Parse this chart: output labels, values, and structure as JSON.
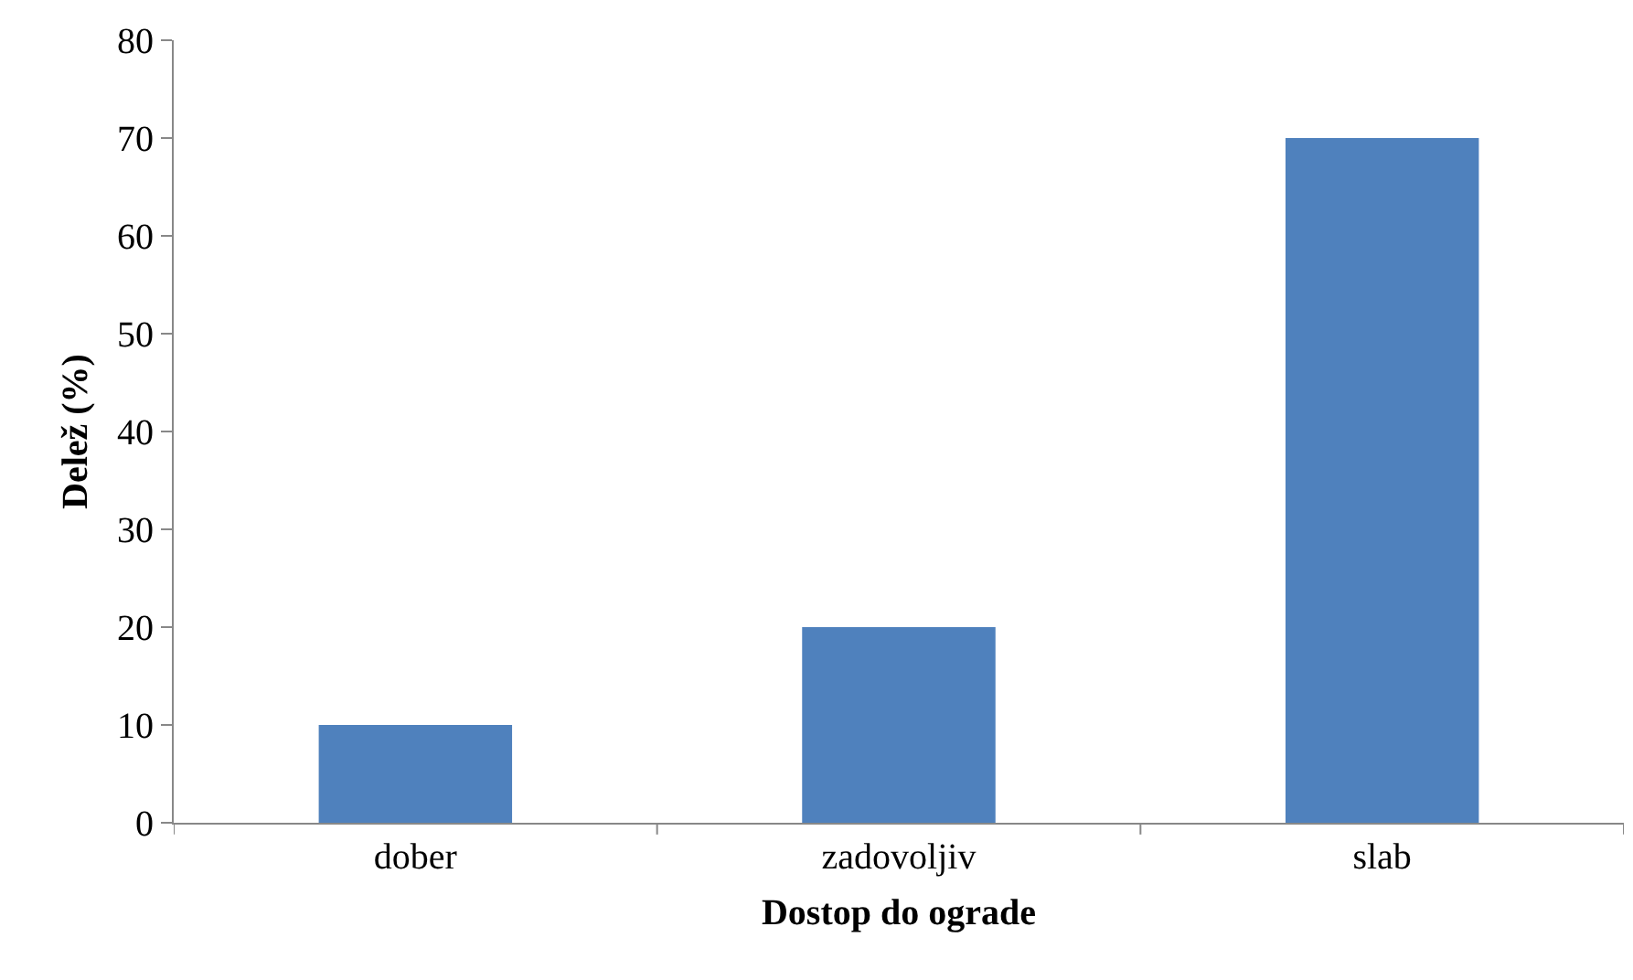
{
  "chart_data": {
    "type": "bar",
    "xlabel": "Dostop do ograde",
    "ylabel": "Delež (%)",
    "categories": [
      "dober",
      "zadovoljiv",
      "slab"
    ],
    "values": [
      10,
      20,
      70
    ],
    "color": "#4f81bd",
    "ylim": [
      0,
      80
    ],
    "yticks": [
      0,
      10,
      20,
      30,
      40,
      50,
      60,
      70,
      80
    ]
  }
}
